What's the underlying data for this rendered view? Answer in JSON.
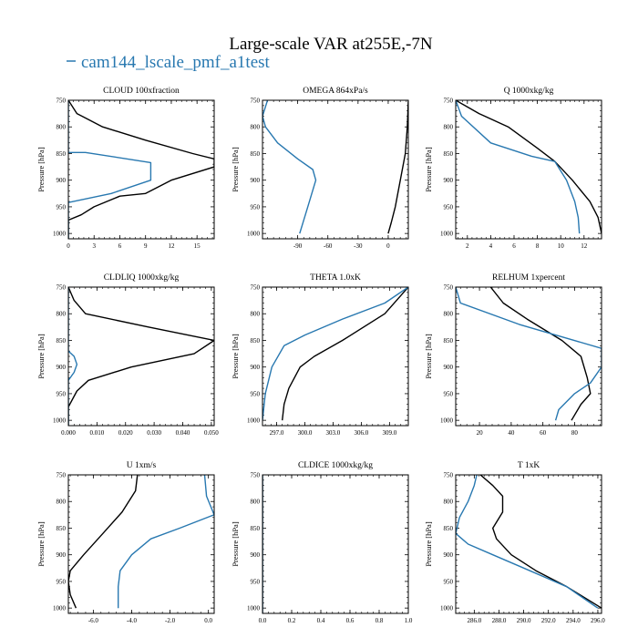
{
  "figure": {
    "title": "Large-scale VAR at255E,-7N",
    "legend_label": "cam144_lscale_pmf_a1test",
    "legend_color": "#2878b0",
    "ref_color": "#000000"
  },
  "chart_data": [
    {
      "type": "line",
      "title": "CLOUD  100xfraction",
      "ylabel": "Pressure [hPa]",
      "xlim": [
        0,
        17
      ],
      "ylim": [
        1010,
        750
      ],
      "xticks": [
        0,
        3,
        6,
        9,
        12,
        15
      ],
      "xtick_labels": [
        "0",
        "3",
        "6",
        "9",
        "12",
        "15"
      ],
      "yticks": [
        750,
        800,
        850,
        900,
        950,
        1000
      ],
      "ytick_labels": [
        "750",
        "800",
        "850",
        "900",
        "950",
        "1000"
      ],
      "series": [
        {
          "color": "#000000",
          "x": [
            0,
            1,
            4,
            9,
            14.5,
            17,
            17,
            12,
            9,
            6,
            3,
            1.5,
            0,
            0
          ],
          "y": [
            750,
            775,
            800,
            825,
            850,
            860,
            875,
            900,
            925,
            930,
            950,
            965,
            975,
            1010
          ]
        },
        {
          "color": "#2878b0",
          "x": [
            0,
            0,
            2,
            9.6,
            9.6,
            5,
            0,
            0
          ],
          "y": [
            750,
            848,
            848,
            867,
            900,
            925,
            942,
            1010
          ]
        }
      ]
    },
    {
      "type": "line",
      "title": "OMEGA  864xPa/s",
      "ylabel": "Pressure [hPa]",
      "xlim": [
        -125,
        20
      ],
      "ylim": [
        1010,
        750
      ],
      "xticks": [
        -90,
        -60,
        -30,
        0
      ],
      "xtick_labels": [
        "-90",
        "-60",
        "-30",
        "0"
      ],
      "yticks": [
        750,
        800,
        850,
        900,
        950,
        1000
      ],
      "ytick_labels": [
        "750",
        "800",
        "850",
        "900",
        "950",
        "1000"
      ],
      "series": [
        {
          "color": "#000000",
          "x": [
            20,
            19,
            17,
            12,
            7,
            3,
            0
          ],
          "y": [
            750,
            800,
            850,
            900,
            950,
            980,
            1000
          ]
        },
        {
          "color": "#2878b0",
          "x": [
            -120,
            -125,
            -122,
            -110,
            -90,
            -75,
            -72,
            -80,
            -88
          ],
          "y": [
            750,
            780,
            800,
            830,
            860,
            880,
            900,
            950,
            1000
          ]
        }
      ]
    },
    {
      "type": "line",
      "title": "Q  1000xkg/kg",
      "ylabel": "Pressure [hPa]",
      "xlim": [
        1,
        13.5
      ],
      "ylim": [
        1010,
        750
      ],
      "xticks": [
        2,
        4,
        6,
        8,
        10,
        12
      ],
      "xtick_labels": [
        "2",
        "4",
        "6",
        "8",
        "10",
        "12"
      ],
      "yticks": [
        750,
        800,
        850,
        900,
        950,
        1000
      ],
      "ytick_labels": [
        "750",
        "800",
        "850",
        "900",
        "950",
        "1000"
      ],
      "series": [
        {
          "color": "#000000",
          "x": [
            1,
            3,
            5.5,
            8,
            9.5,
            11,
            12.5,
            13.2,
            13.5
          ],
          "y": [
            750,
            775,
            800,
            840,
            865,
            900,
            940,
            970,
            1000
          ]
        },
        {
          "color": "#2878b0",
          "x": [
            1,
            1.5,
            4,
            7.5,
            9.5,
            10.5,
            11.2,
            11.5,
            11.6
          ],
          "y": [
            750,
            780,
            830,
            855,
            865,
            900,
            940,
            970,
            1000
          ]
        }
      ]
    },
    {
      "type": "line",
      "title": "CLDLIQ  1000xkg/kg",
      "ylabel": "Pressure [hPa]",
      "xlim": [
        0,
        0.051
      ],
      "ylim": [
        1010,
        750
      ],
      "xticks": [
        0,
        0.01,
        0.02,
        0.03,
        0.04,
        0.05
      ],
      "xtick_labels": [
        "0.000",
        "0.010",
        "0.020",
        "0.030",
        "0.040",
        "0.050"
      ],
      "yticks": [
        750,
        800,
        850,
        900,
        950,
        1000
      ],
      "ytick_labels": [
        "750",
        "800",
        "850",
        "900",
        "950",
        "1000"
      ],
      "series": [
        {
          "color": "#000000",
          "x": [
            0,
            0.002,
            0.006,
            0.028,
            0.051,
            0.044,
            0.022,
            0.007,
            0.003,
            0,
            0
          ],
          "y": [
            750,
            775,
            800,
            825,
            850,
            875,
            900,
            925,
            945,
            975,
            1010
          ]
        },
        {
          "color": "#2878b0",
          "x": [
            0,
            0,
            0.002,
            0.003,
            0.002,
            0,
            0
          ],
          "y": [
            750,
            870,
            880,
            895,
            910,
            925,
            1010
          ]
        }
      ]
    },
    {
      "type": "line",
      "title": "THETA  1.0xK",
      "ylabel": "Pressure [hPa]",
      "xlim": [
        295.5,
        311
      ],
      "ylim": [
        1010,
        750
      ],
      "xticks": [
        297,
        300,
        303,
        306,
        309
      ],
      "xtick_labels": [
        "297.0",
        "300.0",
        "303.0",
        "306.0",
        "309.0"
      ],
      "yticks": [
        750,
        800,
        850,
        900,
        950,
        1000
      ],
      "ytick_labels": [
        "750",
        "800",
        "850",
        "900",
        "950",
        "1000"
      ],
      "series": [
        {
          "color": "#000000",
          "x": [
            311,
            308.5,
            304,
            301,
            299.5,
            298.3,
            297.8,
            297.6
          ],
          "y": [
            750,
            800,
            850,
            880,
            900,
            940,
            970,
            1000
          ]
        },
        {
          "color": "#2878b0",
          "x": [
            311,
            308.5,
            304,
            300,
            297.8,
            296.5,
            295.8,
            295.5
          ],
          "y": [
            750,
            780,
            810,
            840,
            860,
            900,
            950,
            1000
          ]
        }
      ]
    },
    {
      "type": "line",
      "title": "RELHUM  1xpercent",
      "ylabel": "Pressure [hPa]",
      "xlim": [
        5,
        97
      ],
      "ylim": [
        1010,
        750
      ],
      "xticks": [
        20,
        40,
        60,
        80
      ],
      "xtick_labels": [
        "20",
        "40",
        "60",
        "80"
      ],
      "yticks": [
        750,
        800,
        850,
        900,
        950,
        1000
      ],
      "ytick_labels": [
        "750",
        "800",
        "850",
        "900",
        "950",
        "1000"
      ],
      "series": [
        {
          "color": "#000000",
          "x": [
            27,
            35,
            50,
            72,
            84,
            88,
            90,
            84,
            78
          ],
          "y": [
            750,
            780,
            810,
            850,
            880,
            920,
            950,
            970,
            1000
          ]
        },
        {
          "color": "#2878b0",
          "x": [
            5,
            8,
            45,
            97,
            97,
            90,
            80,
            70,
            68
          ],
          "y": [
            750,
            780,
            820,
            865,
            900,
            930,
            950,
            980,
            1000
          ]
        }
      ]
    },
    {
      "type": "line",
      "title": "U  1xm/s",
      "ylabel": "Pressure [hPa]",
      "xlim": [
        -7.3,
        0.3
      ],
      "ylim": [
        1010,
        750
      ],
      "xticks": [
        -6,
        -4,
        -2,
        0
      ],
      "xtick_labels": [
        "-6.0",
        "-4.0",
        "-2.0",
        "0.0"
      ],
      "yticks": [
        750,
        800,
        850,
        900,
        950,
        1000
      ],
      "ytick_labels": [
        "750",
        "800",
        "850",
        "900",
        "950",
        "1000"
      ],
      "series": [
        {
          "color": "#000000",
          "x": [
            -3.7,
            -3.8,
            -4.5,
            -5.5,
            -6.5,
            -7.2,
            -7.3,
            -7.2,
            -6.9
          ],
          "y": [
            750,
            780,
            820,
            860,
            900,
            930,
            950,
            975,
            1000
          ]
        },
        {
          "color": "#2878b0",
          "x": [
            -0.2,
            -0.1,
            0.3,
            -1.5,
            -3,
            -4,
            -4.6,
            -4.7,
            -4.7
          ],
          "y": [
            750,
            790,
            825,
            850,
            870,
            900,
            930,
            960,
            1000
          ]
        }
      ]
    },
    {
      "type": "line",
      "title": "CLDICE  1000xkg/kg",
      "ylabel": "Pressure [hPa]",
      "xlim": [
        0,
        1
      ],
      "ylim": [
        1010,
        750
      ],
      "xticks": [
        0,
        0.2,
        0.4,
        0.6,
        0.8,
        1
      ],
      "xtick_labels": [
        "0.0",
        "0.2",
        "0.4",
        "0.6",
        "0.8",
        "1.0"
      ],
      "yticks": [
        750,
        800,
        850,
        900,
        950,
        1000
      ],
      "ytick_labels": [
        "750",
        "800",
        "850",
        "900",
        "950",
        "1000"
      ],
      "series": [
        {
          "color": "#000000",
          "x": [
            0,
            0
          ],
          "y": [
            750,
            1010
          ]
        },
        {
          "color": "#2878b0",
          "x": [
            0,
            0
          ],
          "y": [
            750,
            1010
          ]
        }
      ]
    },
    {
      "type": "line",
      "title": "T  1xK",
      "ylabel": "Pressure [hPa]",
      "xlim": [
        284.5,
        296.3
      ],
      "ylim": [
        1010,
        750
      ],
      "xticks": [
        286,
        288,
        290,
        292,
        294,
        296
      ],
      "xtick_labels": [
        "286.0",
        "288.0",
        "290.0",
        "292.0",
        "294.0",
        "296.0"
      ],
      "yticks": [
        750,
        800,
        850,
        900,
        950,
        1000
      ],
      "ytick_labels": [
        "750",
        "800",
        "850",
        "900",
        "950",
        "1000"
      ],
      "series": [
        {
          "color": "#000000",
          "x": [
            286.5,
            287.5,
            288.3,
            288.3,
            287.5,
            287.8,
            289,
            291,
            293.5,
            296.3
          ],
          "y": [
            750,
            770,
            790,
            820,
            850,
            870,
            900,
            930,
            960,
            1000
          ]
        },
        {
          "color": "#2878b0",
          "x": [
            286.2,
            286,
            285.5,
            284.8,
            284.5,
            285.5,
            287.5,
            290.5,
            293.5,
            296
          ],
          "y": [
            750,
            770,
            800,
            830,
            860,
            880,
            900,
            930,
            960,
            1000
          ]
        }
      ]
    }
  ]
}
